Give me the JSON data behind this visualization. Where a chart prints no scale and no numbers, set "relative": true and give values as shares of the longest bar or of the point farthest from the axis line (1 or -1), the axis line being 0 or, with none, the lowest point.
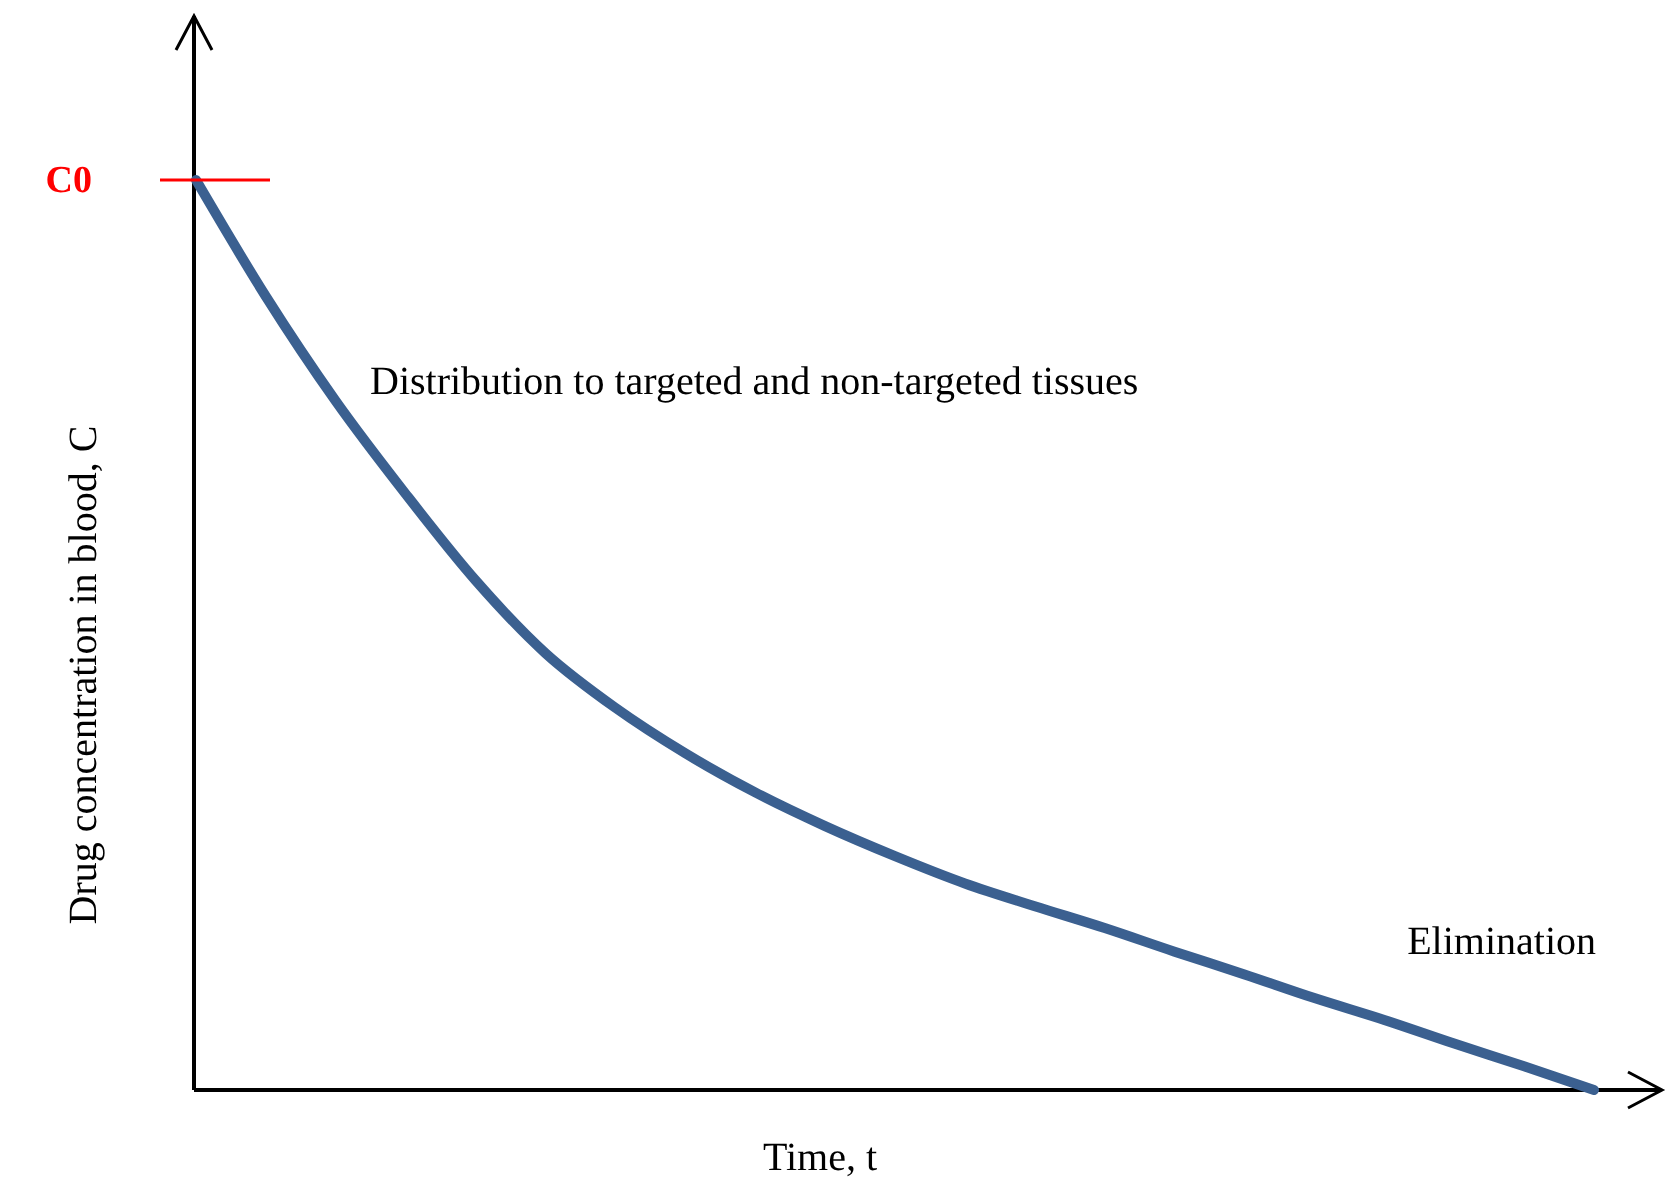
{
  "chart_data": {
    "type": "line",
    "relative": true,
    "xlabel": "Time, t",
    "ylabel": "Drug concentration in blood, C",
    "categories": [
      null,
      null,
      null,
      null,
      null,
      null,
      null,
      null,
      null,
      null,
      null,
      null,
      null,
      null,
      null,
      null,
      null,
      null,
      null,
      null,
      null
    ],
    "series": [
      {
        "color": "#3b6090",
        "values": [
          1,
          0.872,
          0.757,
          0.655,
          0.56,
          0.48,
          0.42,
          0.37,
          0.327,
          0.29,
          0.257,
          0.227,
          0.202,
          0.178,
          0.152,
          0.127,
          0.101,
          0.077,
          0.051,
          0.026,
          0
        ]
      }
    ],
    "annotations": [
      "C0",
      "Distribution to targeted and non-targeted tissues",
      "Elimination"
    ]
  }
}
